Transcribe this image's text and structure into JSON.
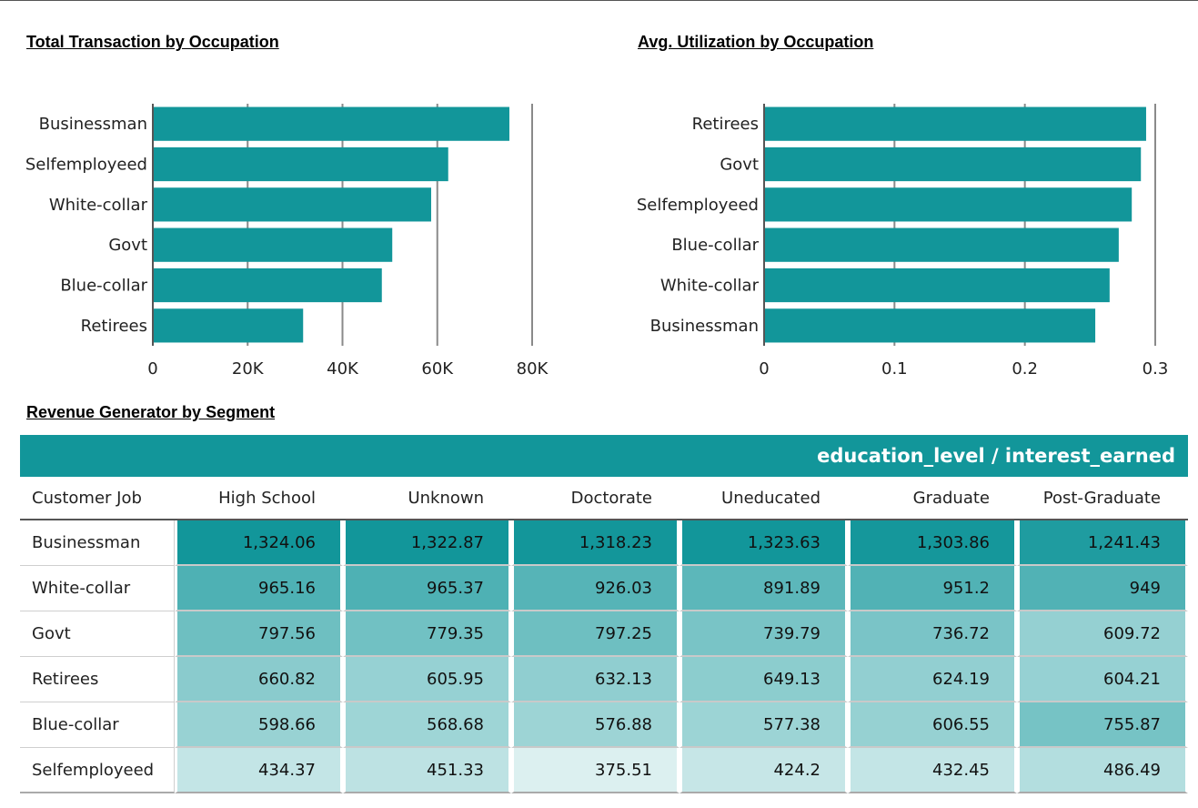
{
  "charts": {
    "left_title": "Total Transaction by Occupation",
    "right_title": "Avg. Utilization by Occupation",
    "table_title": "Revenue Generator by Segment"
  },
  "chart_data": [
    {
      "type": "bar",
      "orientation": "horizontal",
      "title": "Total Transaction by Occupation",
      "categories": [
        "Businessman",
        "Selfemployeed",
        "White-collar",
        "Govt",
        "Blue-collar",
        "Retirees"
      ],
      "values": [
        75200,
        62300,
        58700,
        50500,
        48300,
        31700
      ],
      "xlim": [
        0,
        80000
      ],
      "ticks": [
        0,
        20000,
        40000,
        60000,
        80000
      ],
      "tick_labels": [
        "0",
        "20K",
        "40K",
        "60K",
        "80K"
      ],
      "grid": true,
      "color": "#12969a"
    },
    {
      "type": "bar",
      "orientation": "horizontal",
      "title": "Avg. Utilization by Occupation",
      "categories": [
        "Retirees",
        "Govt",
        "Selfemployeed",
        "Blue-collar",
        "White-collar",
        "Businessman"
      ],
      "values": [
        0.293,
        0.289,
        0.282,
        0.272,
        0.265,
        0.254
      ],
      "xlim": [
        0,
        0.3
      ],
      "ticks": [
        0,
        0.1,
        0.2,
        0.3
      ],
      "tick_labels": [
        "0",
        "0.1",
        "0.2",
        "0.3"
      ],
      "grid": true,
      "color": "#12969a"
    },
    {
      "type": "heatmap",
      "title": "Revenue Generator by Segment",
      "header": "education_level / interest_earned",
      "row_header": "Customer Job",
      "columns": [
        "High School",
        "Unknown",
        "Doctorate",
        "Uneducated",
        "Graduate",
        "Post-Graduate"
      ],
      "rows": [
        {
          "label": "Businessman",
          "values": [
            "1,324.06",
            "1,322.87",
            "1,318.23",
            "1,323.63",
            "1,303.86",
            "1,241.43"
          ]
        },
        {
          "label": "White-collar",
          "values": [
            "965.16",
            "965.37",
            "926.03",
            "891.89",
            "951.2",
            "949"
          ]
        },
        {
          "label": "Govt",
          "values": [
            "797.56",
            "779.35",
            "797.25",
            "739.79",
            "736.72",
            "609.72"
          ]
        },
        {
          "label": "Retirees",
          "values": [
            "660.82",
            "605.95",
            "632.13",
            "649.13",
            "624.19",
            "604.21"
          ]
        },
        {
          "label": "Blue-collar",
          "values": [
            "598.66",
            "568.68",
            "576.88",
            "577.38",
            "606.55",
            "755.87"
          ]
        },
        {
          "label": "Selfemployeed",
          "values": [
            "434.37",
            "451.33",
            "375.51",
            "424.2",
            "432.45",
            "486.49"
          ]
        }
      ],
      "scale_range": [
        375.51,
        1324.06
      ],
      "color_low": "#f2fafa",
      "color_high": "#12969a"
    }
  ]
}
